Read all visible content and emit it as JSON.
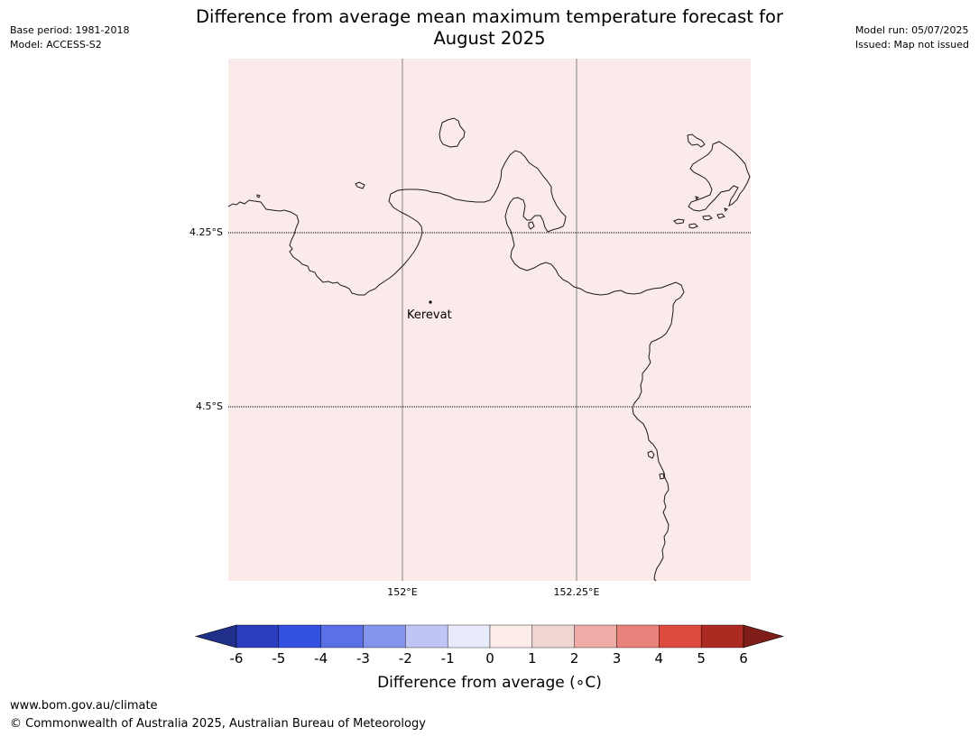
{
  "meta": {
    "base_period": "Base period: 1981-2018",
    "model": "Model: ACCESS-S2",
    "model_run": "Model run: 05/07/2025",
    "issued": "Issued: Map not issued"
  },
  "title": {
    "line1": "Difference from average mean maximum temperature forecast for",
    "line2": "August 2025"
  },
  "map": {
    "fill_color": "#fbeaea",
    "coastline_color": "#1a1a1a",
    "meridian_color": "#808080",
    "lat_labels": [
      "4.25°S",
      "4.5°S"
    ],
    "lon_labels": [
      "152°E",
      "152.25°E"
    ],
    "places": [
      {
        "name": "Kerevat"
      }
    ]
  },
  "colorbar": {
    "ticks": [
      "-6",
      "-5",
      "-4",
      "-3",
      "-2",
      "-1",
      "0",
      "1",
      "2",
      "3",
      "4",
      "5",
      "6"
    ],
    "colors": [
      "#1f2f8a",
      "#2a3ebd",
      "#3350e0",
      "#5b70e6",
      "#8494ec",
      "#bfc6f5",
      "#e8ebfc",
      "#fcecea",
      "#f0d6d3",
      "#efaca7",
      "#e8817a",
      "#dd4a3e",
      "#ad2a22",
      "#7f1d18"
    ],
    "label": "Difference from average (∘C)"
  },
  "footer": {
    "url": "www.bom.gov.au/climate",
    "copyright": "© Commonwealth of Australia 2025, Australian Bureau of Meteorology"
  }
}
